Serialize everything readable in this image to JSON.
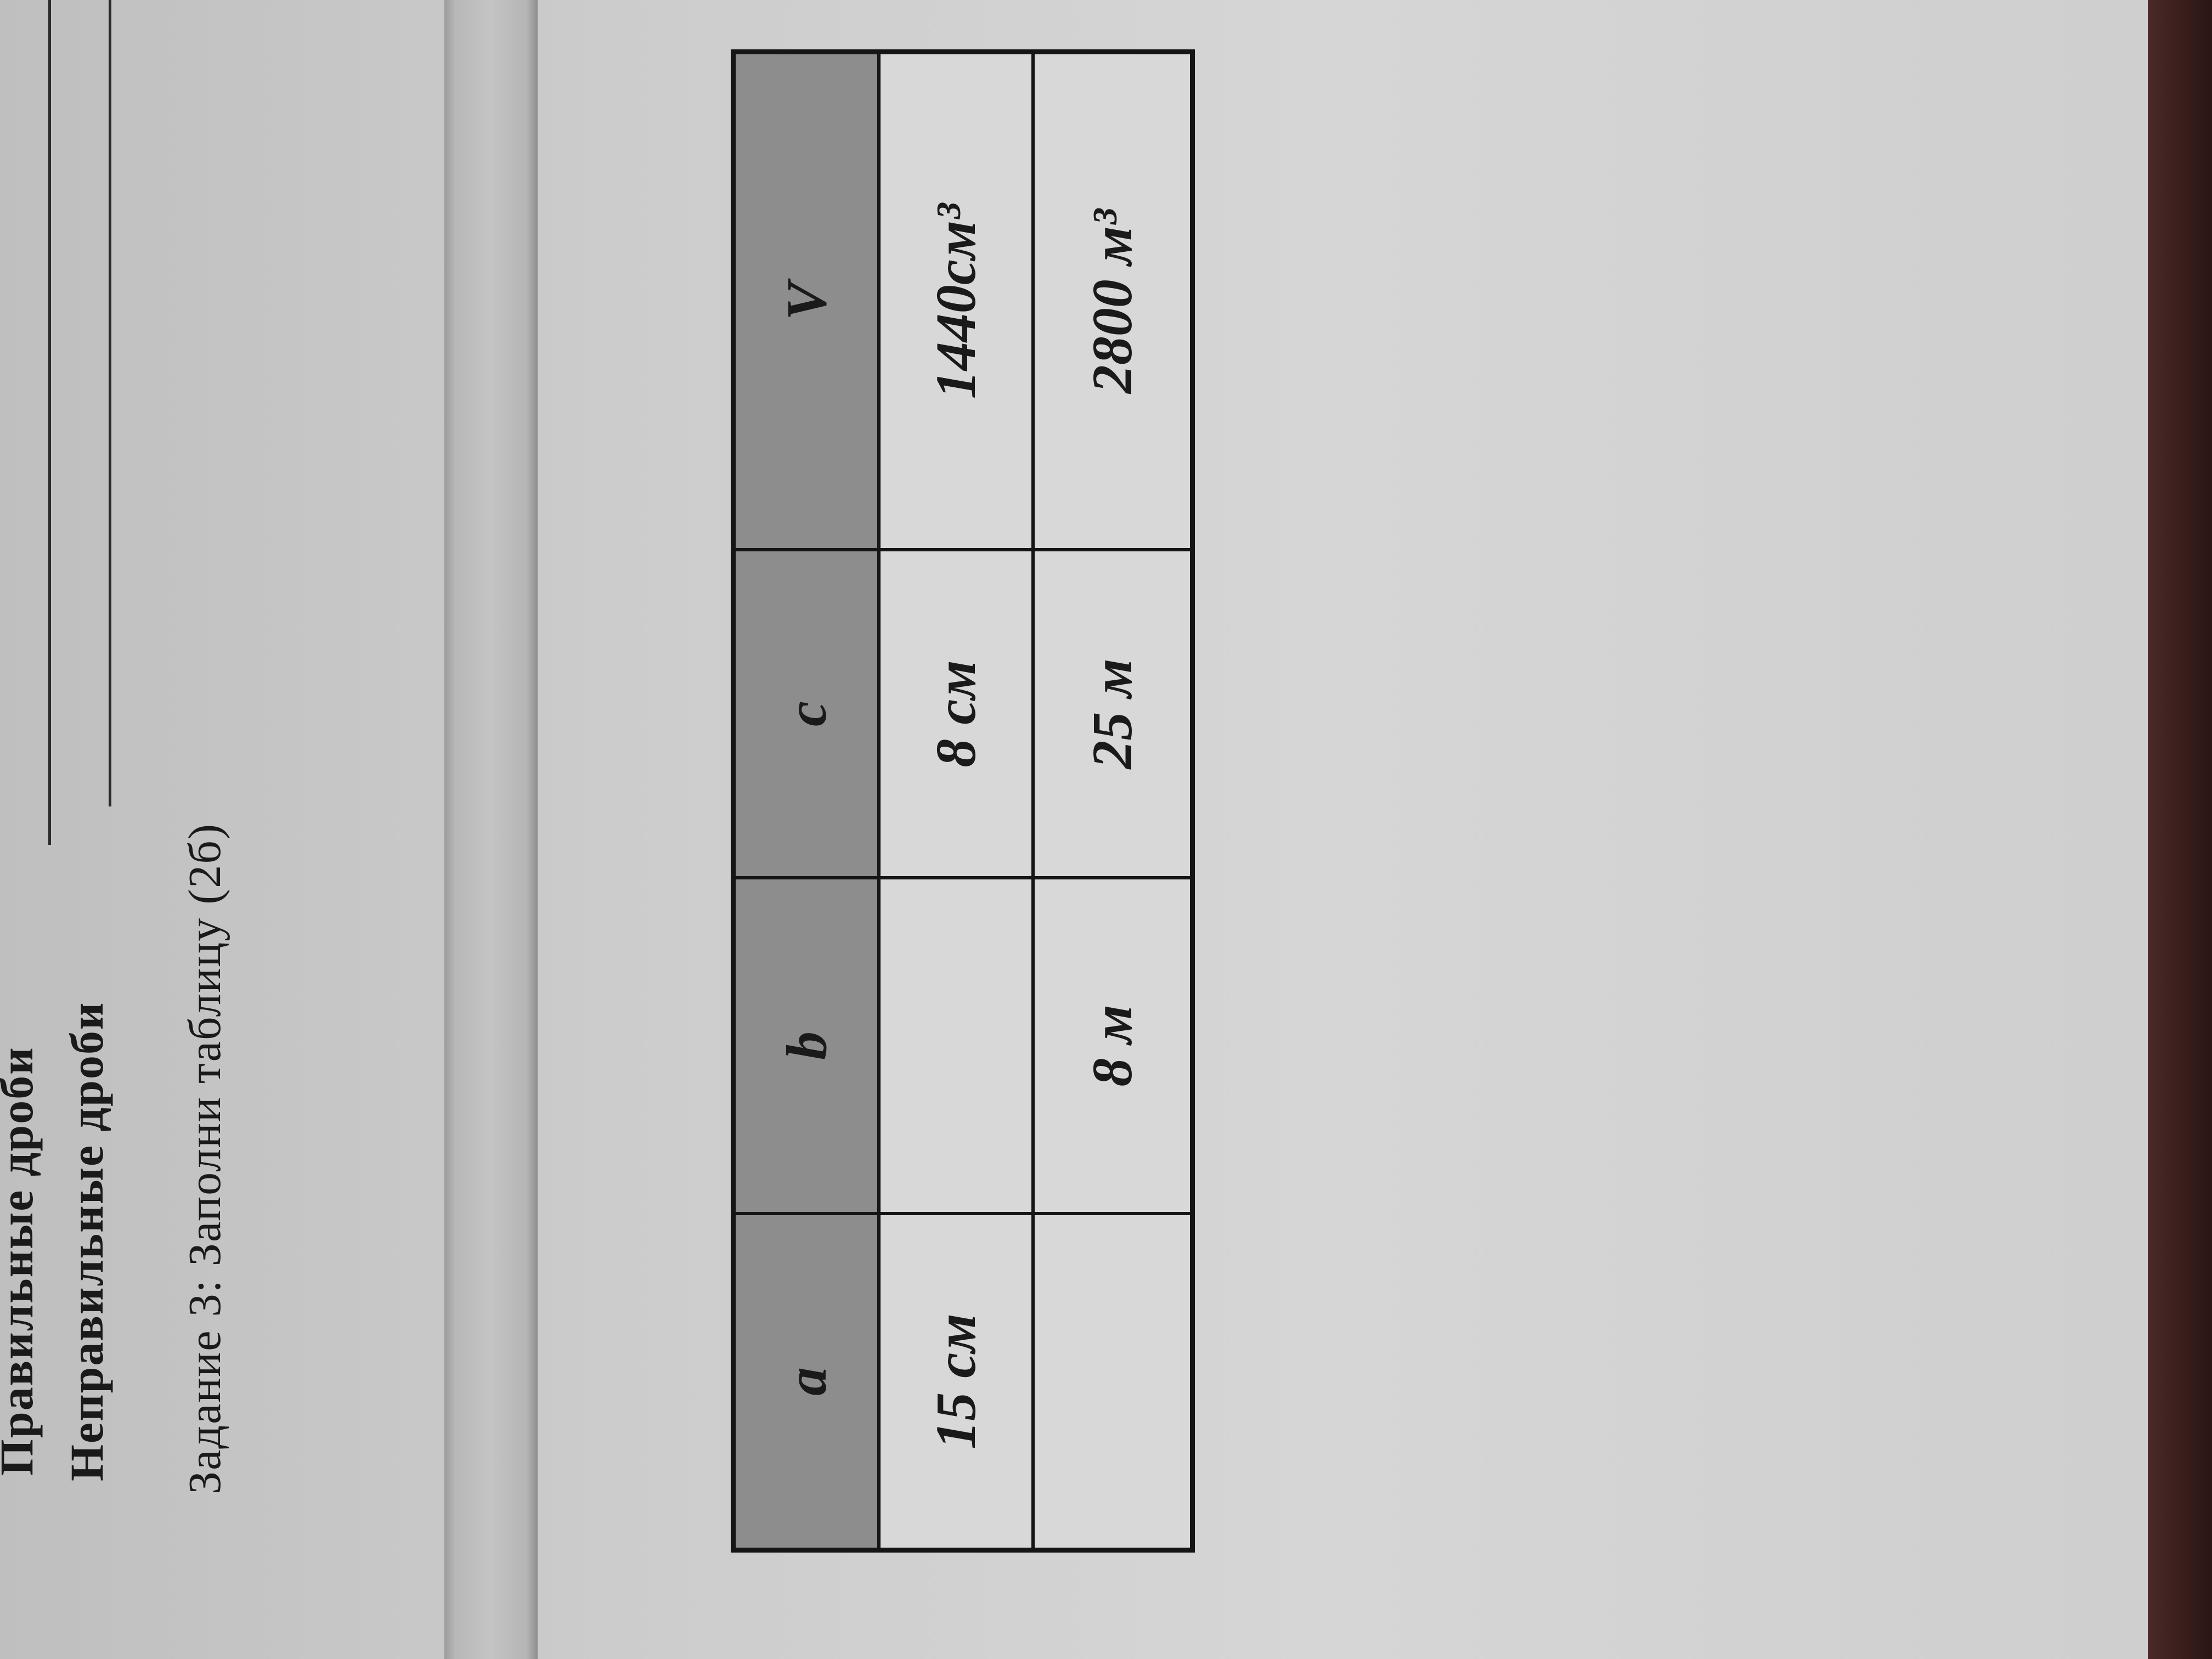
{
  "lines": {
    "proper_fractions": "Правильные дроби",
    "improper_fractions": "Неправильные дроби"
  },
  "task": {
    "title": "Задание 3: Заполни таблицу (2б)"
  },
  "table": {
    "headers": [
      "a",
      "b",
      "c",
      "V"
    ],
    "rows": [
      [
        "15 см",
        "",
        "8 см",
        "1440см³"
      ],
      [
        "",
        "8 м",
        "25 м",
        "2800 м³"
      ]
    ]
  },
  "colors": {
    "header_fill": "#8d8d8d",
    "paper": "#d2d2d2",
    "edge": "#3a1e1c"
  }
}
